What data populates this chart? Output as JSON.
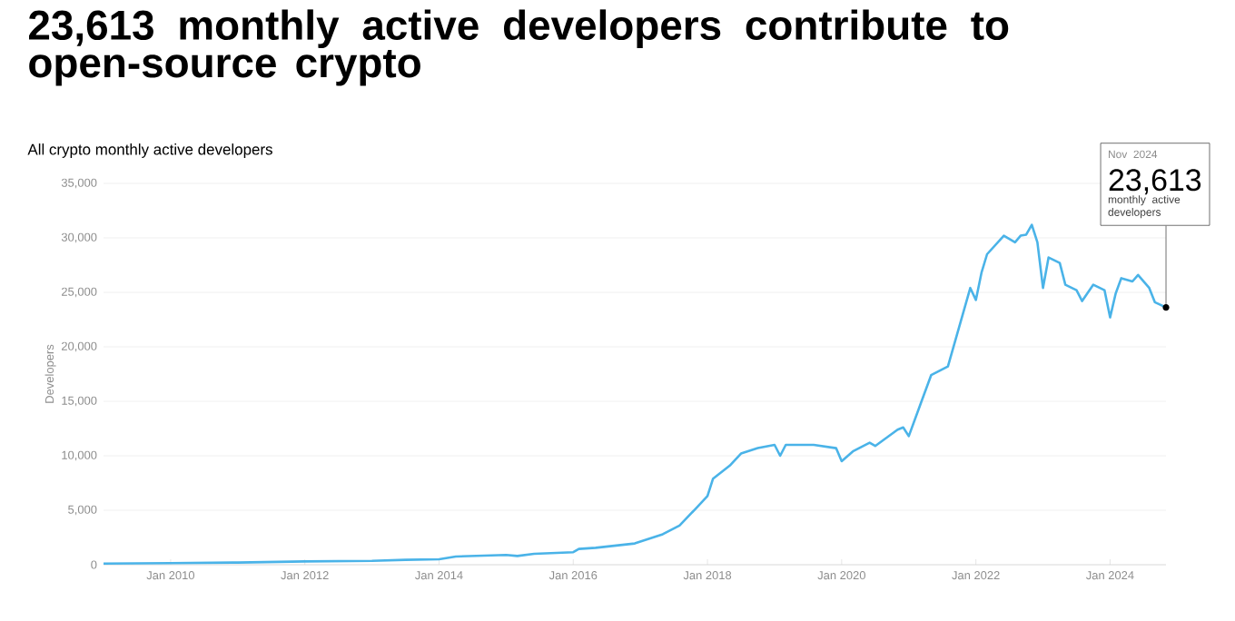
{
  "chart_data": {
    "type": "line",
    "title": "23,613 monthly active developers contribute to open-source crypto",
    "subtitle": "All crypto monthly active developers",
    "ylabel": "Developers",
    "series": [
      {
        "color": "#4ab3e8",
        "x": [
          "2009-01",
          "2010-01",
          "2011-01",
          "2012-01",
          "2013-01",
          "2013-07",
          "2014-01",
          "2014-04",
          "2015-01",
          "2015-03",
          "2015-06",
          "2016-01",
          "2016-02",
          "2016-05",
          "2016-12",
          "2017-05",
          "2017-08",
          "2017-11",
          "2018-01",
          "2018-02",
          "2018-05",
          "2018-07",
          "2018-10",
          "2019-01",
          "2019-02",
          "2019-03",
          "2019-08",
          "2019-12",
          "2020-01",
          "2020-03",
          "2020-06",
          "2020-07",
          "2020-11",
          "2020-12",
          "2021-01",
          "2021-03",
          "2021-05",
          "2021-08",
          "2021-10",
          "2021-12",
          "2022-01",
          "2022-02",
          "2022-03",
          "2022-06",
          "2022-08",
          "2022-09",
          "2022-10",
          "2022-11",
          "2022-12",
          "2023-01",
          "2023-02",
          "2023-04",
          "2023-05",
          "2023-07",
          "2023-08",
          "2023-10",
          "2023-12",
          "2024-01",
          "2024-02",
          "2024-03",
          "2024-05",
          "2024-06",
          "2024-08",
          "2024-09",
          "2024-11"
        ],
        "values": [
          100,
          150,
          200,
          300,
          350,
          450,
          500,
          750,
          900,
          800,
          1000,
          1150,
          1450,
          1550,
          1950,
          2800,
          3600,
          5200,
          6300,
          7900,
          9100,
          10200,
          10700,
          11000,
          10000,
          11000,
          11000,
          10700,
          9500,
          10400,
          11200,
          10900,
          12400,
          12600,
          11800,
          14600,
          17400,
          18200,
          21800,
          25400,
          24300,
          26800,
          28500,
          30200,
          29600,
          30200,
          30300,
          31200,
          29600,
          25400,
          28200,
          27700,
          25700,
          25200,
          24200,
          25700,
          25200,
          22700,
          24900,
          26300,
          26000,
          26600,
          25400,
          24100,
          23613
        ]
      }
    ],
    "xlim": [
      "2009-01",
      "2024-11"
    ],
    "xticks": [
      {
        "value": "2010-01",
        "label": "Jan 2010"
      },
      {
        "value": "2012-01",
        "label": "Jan 2012"
      },
      {
        "value": "2014-01",
        "label": "Jan 2014"
      },
      {
        "value": "2016-01",
        "label": "Jan 2016"
      },
      {
        "value": "2018-01",
        "label": "Jan 2018"
      },
      {
        "value": "2020-01",
        "label": "Jan 2020"
      },
      {
        "value": "2022-01",
        "label": "Jan 2022"
      },
      {
        "value": "2024-01",
        "label": "Jan 2024"
      }
    ],
    "ylim": [
      0,
      35000
    ],
    "yticks": [
      {
        "value": 0,
        "label": "0"
      },
      {
        "value": 5000,
        "label": "5,000"
      },
      {
        "value": 10000,
        "label": "10,000"
      },
      {
        "value": 15000,
        "label": "15,000"
      },
      {
        "value": 20000,
        "label": "20,000"
      },
      {
        "value": 25000,
        "label": "25,000"
      },
      {
        "value": 30000,
        "label": "30,000"
      },
      {
        "value": 35000,
        "label": "35,000"
      }
    ],
    "grid": "y",
    "annotations": [
      "Nov 2024",
      "23,613",
      {
        "text": "monthly active developers",
        "x": "2024-11",
        "y": 23613
      }
    ]
  }
}
